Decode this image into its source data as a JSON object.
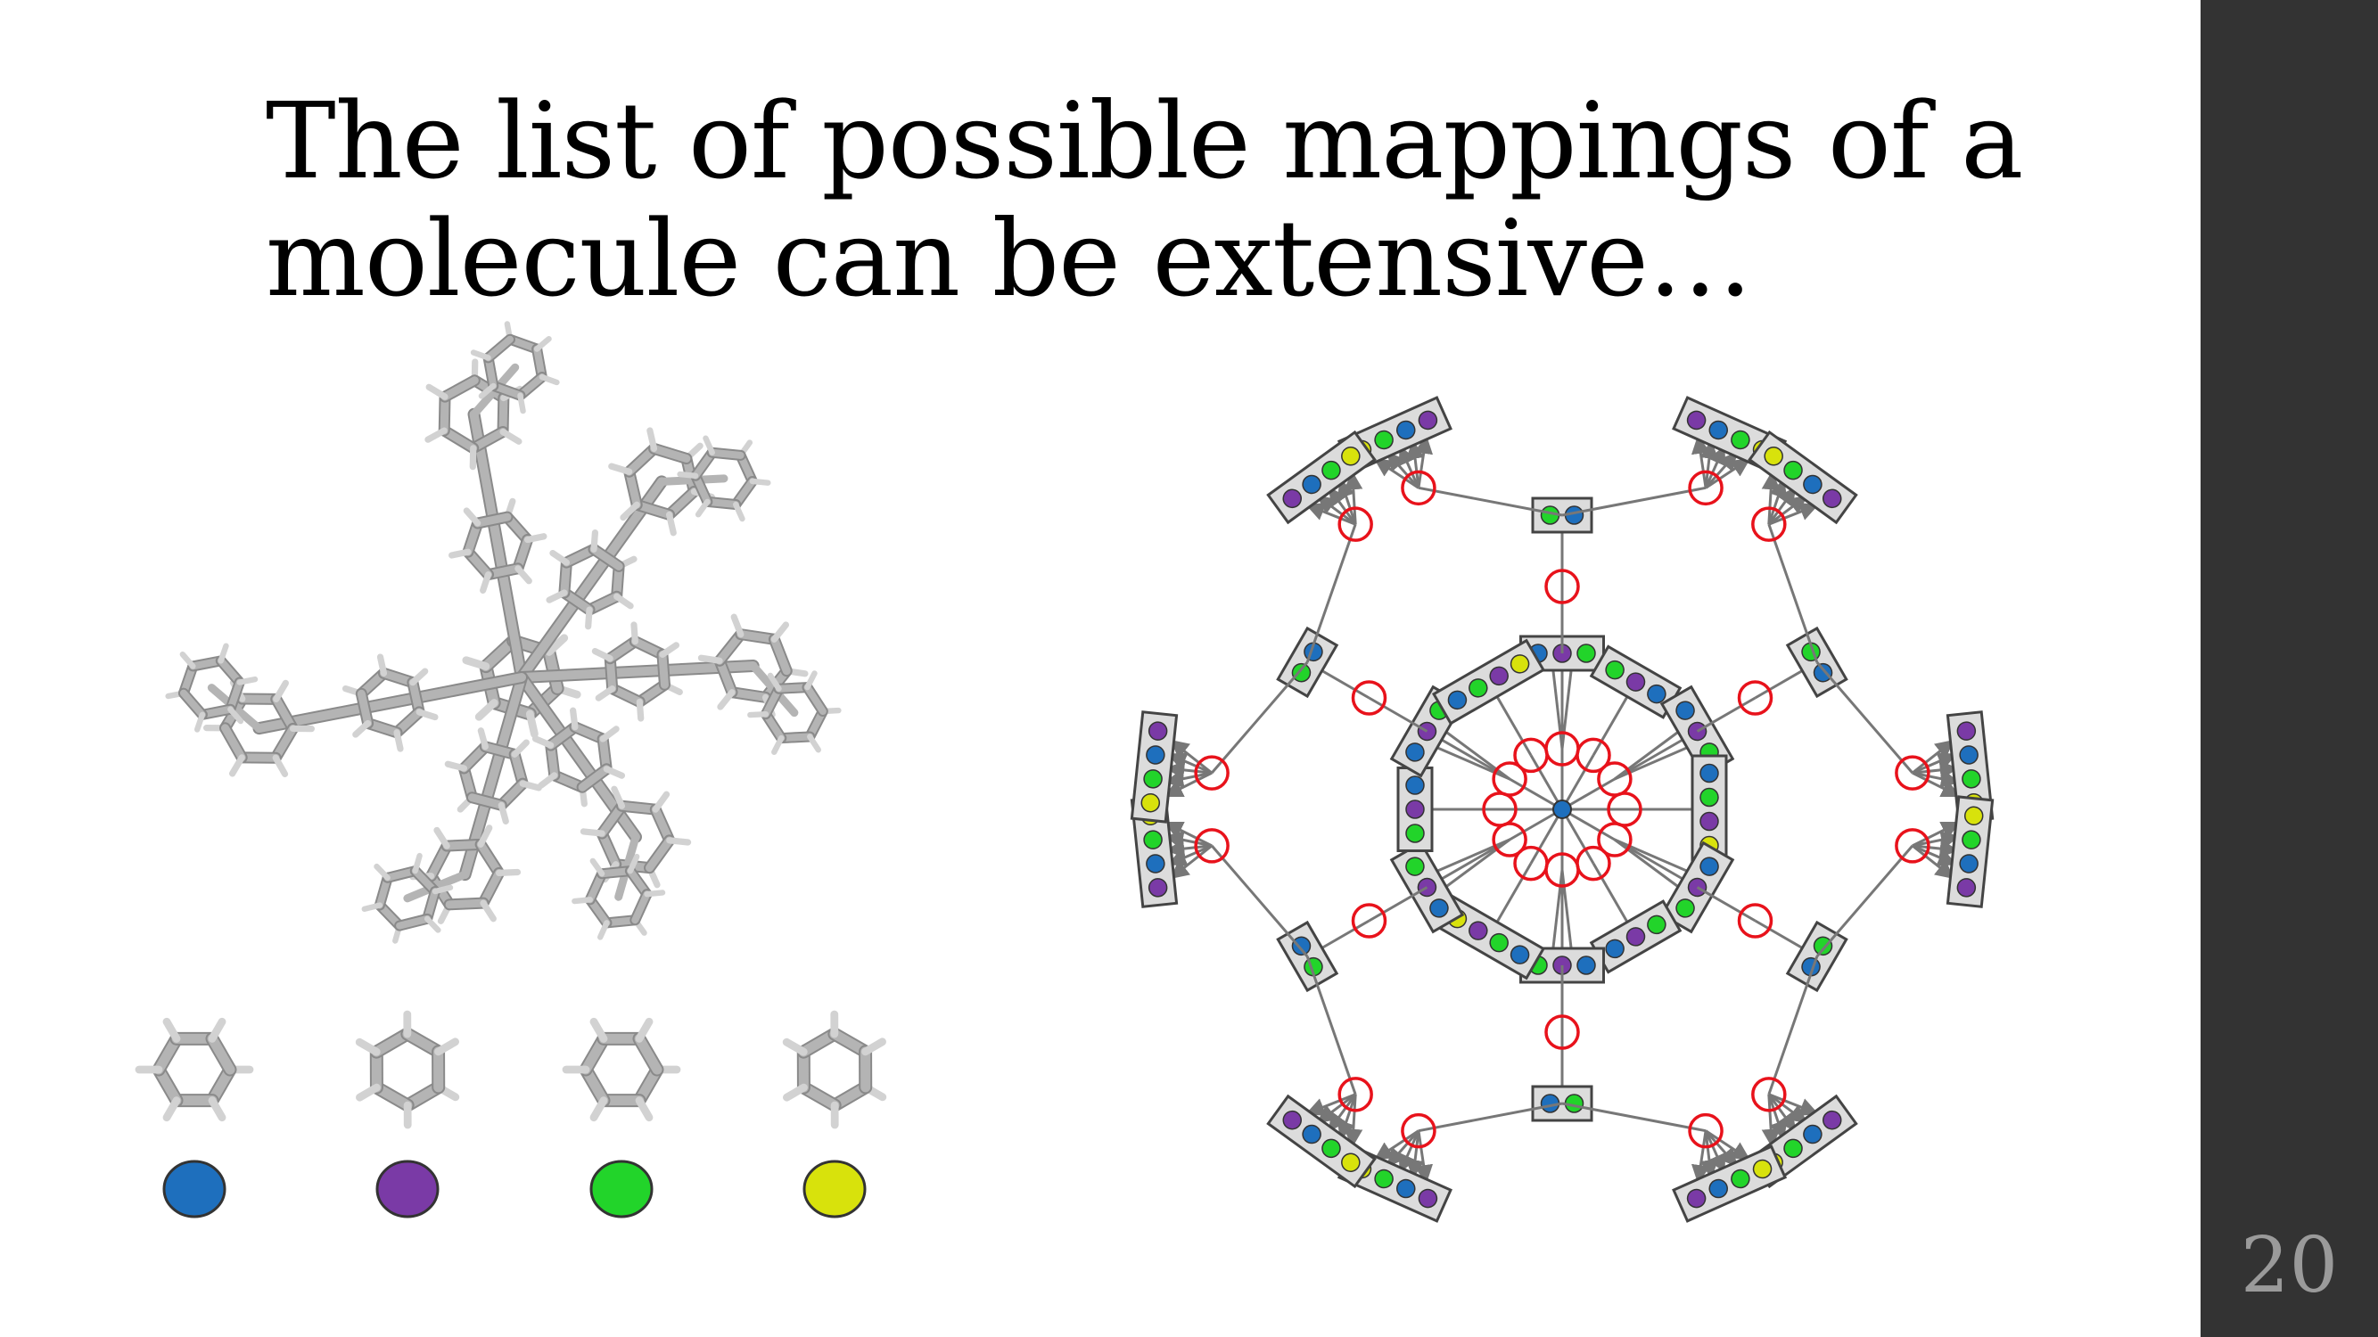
{
  "slide": {
    "title_lines": [
      "The list of possible mappings of a",
      "molecule can be extensive…"
    ],
    "page_number": "20"
  },
  "legend": [
    {
      "fragment": "benzene-orientation-1",
      "color": "#1e6fbd"
    },
    {
      "fragment": "benzene-orientation-2",
      "color": "#7a3aa6"
    },
    {
      "fragment": "benzene-orientation-3",
      "color": "#22d42a"
    },
    {
      "fragment": "benzene-orientation-4",
      "color": "#d8e20c"
    }
  ],
  "colors": {
    "sidebar": "#333333",
    "page_number": "#9a9a9a",
    "tree_edge": "#777777",
    "junction_circle": "#e8121b",
    "box_border": "#444444",
    "box_fill": "#dcdcdc",
    "molecule_stick": "#b4b4b4"
  }
}
